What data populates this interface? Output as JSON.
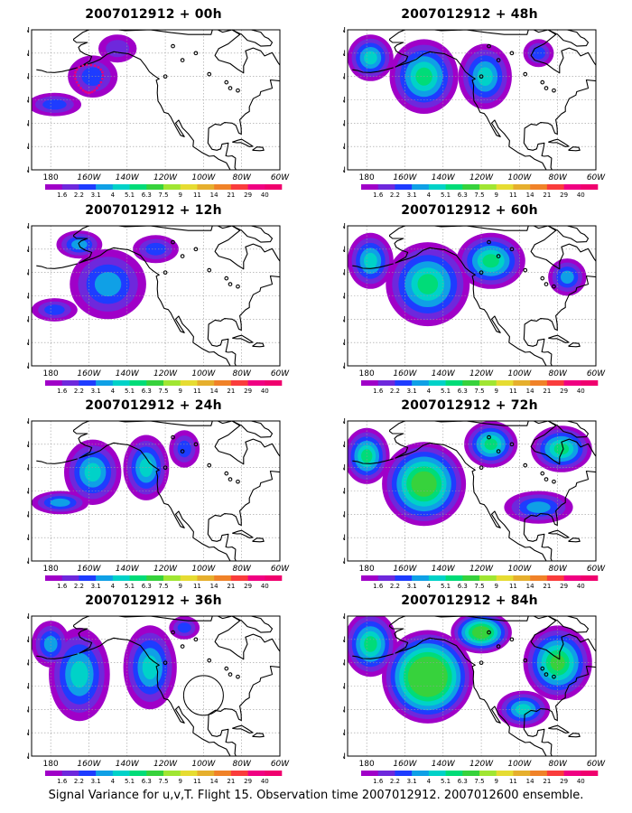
{
  "panels": [
    {
      "title": "2007012912 + 00h",
      "intensity": 0.55
    },
    {
      "title": "2007012912 + 12h",
      "intensity": 0.75
    },
    {
      "title": "2007012912 + 24h",
      "intensity": 0.85
    },
    {
      "title": "2007012912 + 36h",
      "intensity": 0.9
    },
    {
      "title": "2007012912 + 48h",
      "intensity": 0.95
    },
    {
      "title": "2007012912 + 60h",
      "intensity": 1.05
    },
    {
      "title": "2007012912 + 72h",
      "intensity": 1.2
    },
    {
      "title": "2007012912 + 84h",
      "intensity": 1.35
    }
  ],
  "lat_labels": [
    "10N",
    "20N",
    "30N",
    "40N",
    "50N",
    "60N",
    "70N"
  ],
  "lon_labels": [
    "180",
    "160W",
    "140W",
    "120W",
    "100W",
    "80W",
    "60W"
  ],
  "colorbar": {
    "labels": [
      "1.6",
      "2.2",
      "3.1",
      "4",
      "5.1",
      "6.3",
      "7.5",
      "9",
      "11",
      "14",
      "21",
      "29",
      "40"
    ],
    "colors": [
      "#a000c8",
      "#6e28dc",
      "#1e3cff",
      "#0fa0e6",
      "#00d2c8",
      "#00dc78",
      "#37d23c",
      "#a0e632",
      "#e6dc32",
      "#e6af2d",
      "#f08228",
      "#fa3c3c",
      "#f00082"
    ]
  },
  "footer": "Signal Variance for u,v,T. Flight 15. Observation time 2007012912. 2007012600 ensemble."
}
